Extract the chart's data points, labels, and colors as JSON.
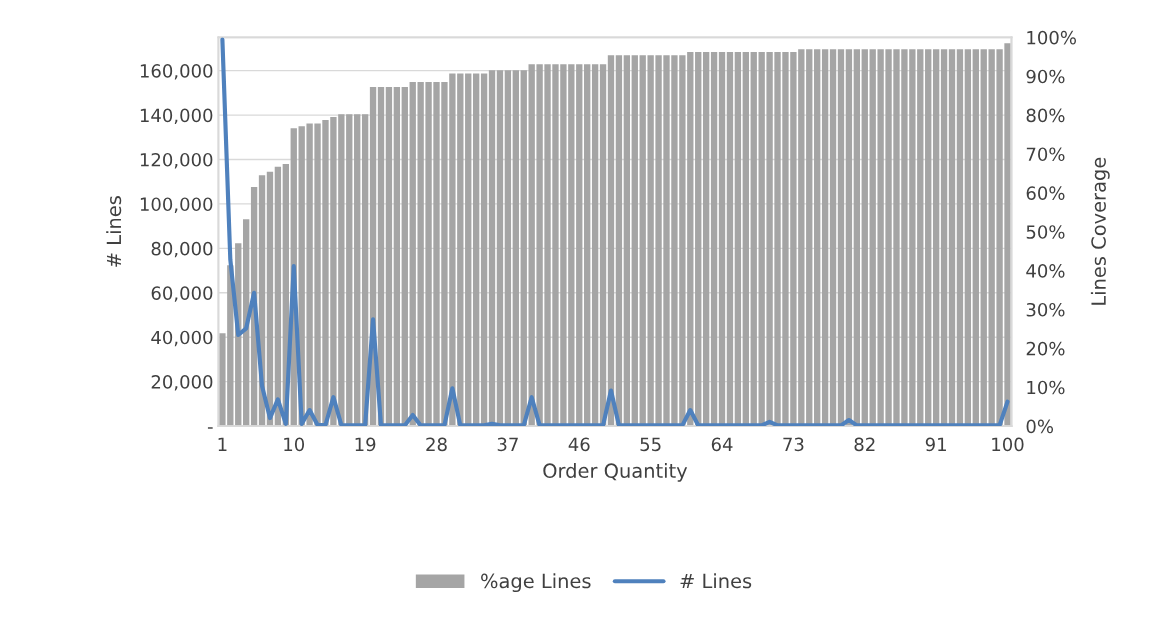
{
  "chart_data": {
    "type": "line",
    "xlabel": "Order Quantity",
    "ylabel": "# Lines",
    "y2label": "Lines Coverage",
    "categories": [
      "1",
      null,
      null,
      null,
      null,
      null,
      null,
      null,
      null,
      "10",
      null,
      null,
      null,
      null,
      null,
      null,
      null,
      null,
      "19",
      null,
      null,
      null,
      null,
      null,
      null,
      null,
      null,
      "28",
      null,
      null,
      null,
      null,
      null,
      null,
      null,
      null,
      "37",
      null,
      null,
      null,
      null,
      null,
      null,
      null,
      null,
      "46",
      null,
      null,
      null,
      null,
      null,
      null,
      null,
      null,
      "55",
      null,
      null,
      null,
      null,
      null,
      null,
      null,
      null,
      "64",
      null,
      null,
      null,
      null,
      null,
      null,
      null,
      null,
      "73",
      null,
      null,
      null,
      null,
      null,
      null,
      null,
      null,
      "82",
      null,
      null,
      null,
      null,
      null,
      null,
      null,
      null,
      "91",
      null,
      null,
      null,
      null,
      null,
      null,
      null,
      null,
      "100"
    ],
    "series": [
      {
        "name": "%age Lines",
        "type": "bar",
        "axis": "y2",
        "color": "#a5a5a5",
        "values": [
          23.9,
          41.4,
          47,
          53.2,
          61.5,
          64.5,
          65.4,
          66.7,
          67.4,
          76.6,
          77.1,
          77.8,
          77.8,
          78.7,
          79.5,
          80.2,
          80.2,
          80.2,
          80.2,
          87.2,
          87.2,
          87.2,
          87.2,
          87.2,
          88.5,
          88.5,
          88.5,
          88.5,
          88.5,
          90.7,
          90.7,
          90.7,
          90.7,
          90.7,
          91.5,
          91.5,
          91.5,
          91.5,
          91.5,
          93.1,
          93.1,
          93.1,
          93.1,
          93.1,
          93.1,
          93.1,
          93.1,
          93.1,
          93.1,
          95.4,
          95.4,
          95.4,
          95.4,
          95.4,
          95.4,
          95.4,
          95.4,
          95.4,
          95.4,
          96.2,
          96.2,
          96.2,
          96.2,
          96.2,
          96.2,
          96.2,
          96.2,
          96.2,
          96.2,
          96.2,
          96.2,
          96.2,
          96.2,
          96.9,
          96.9,
          96.9,
          96.9,
          96.9,
          96.9,
          96.9,
          96.9,
          96.9,
          96.9,
          96.9,
          96.9,
          96.9,
          96.9,
          96.9,
          96.9,
          96.9,
          96.9,
          96.9,
          96.9,
          96.9,
          96.9,
          96.9,
          96.9,
          96.9,
          96.9,
          98.5
        ]
      },
      {
        "name": "# Lines",
        "axis": "y",
        "color": "#4f81bd",
        "values": [
          174000,
          75000,
          41000,
          44000,
          60000,
          18000,
          3600,
          12000,
          1000,
          72000,
          1000,
          7200,
          500,
          500,
          13000,
          500,
          300,
          300,
          300,
          48000,
          300,
          300,
          300,
          300,
          5000,
          300,
          300,
          300,
          300,
          17000,
          300,
          300,
          300,
          300,
          1000,
          300,
          300,
          300,
          300,
          13000,
          300,
          300,
          300,
          300,
          300,
          300,
          300,
          300,
          300,
          16000,
          300,
          300,
          300,
          300,
          300,
          300,
          300,
          300,
          300,
          7200,
          300,
          300,
          300,
          300,
          300,
          300,
          300,
          300,
          300,
          1900,
          300,
          300,
          300,
          300,
          300,
          300,
          300,
          300,
          300,
          2700,
          300,
          300,
          300,
          300,
          300,
          300,
          300,
          300,
          300,
          300,
          300,
          300,
          300,
          300,
          300,
          300,
          300,
          300,
          300,
          11000
        ]
      }
    ],
    "ylim": [
      0,
      175000
    ],
    "yticks": [
      {
        "value": 0,
        "label": "-"
      },
      {
        "value": 20000,
        "label": "20,000"
      },
      {
        "value": 40000,
        "label": "40,000"
      },
      {
        "value": 60000,
        "label": "60,000"
      },
      {
        "value": 80000,
        "label": "80,000"
      },
      {
        "value": 100000,
        "label": "100,000"
      },
      {
        "value": 120000,
        "label": "120,000"
      },
      {
        "value": 140000,
        "label": "140,000"
      },
      {
        "value": 160000,
        "label": "160,000"
      }
    ],
    "y2lim": [
      0,
      100
    ],
    "y2ticks": [
      {
        "value": 0,
        "label": "0%"
      },
      {
        "value": 10,
        "label": "10%"
      },
      {
        "value": 20,
        "label": "20%"
      },
      {
        "value": 30,
        "label": "30%"
      },
      {
        "value": 40,
        "label": "40%"
      },
      {
        "value": 50,
        "label": "50%"
      },
      {
        "value": 60,
        "label": "60%"
      },
      {
        "value": 70,
        "label": "70%"
      },
      {
        "value": 80,
        "label": "80%"
      },
      {
        "value": 90,
        "label": "90%"
      },
      {
        "value": 100,
        "label": "100%"
      }
    ],
    "grid": "y",
    "legend": "bottom"
  }
}
